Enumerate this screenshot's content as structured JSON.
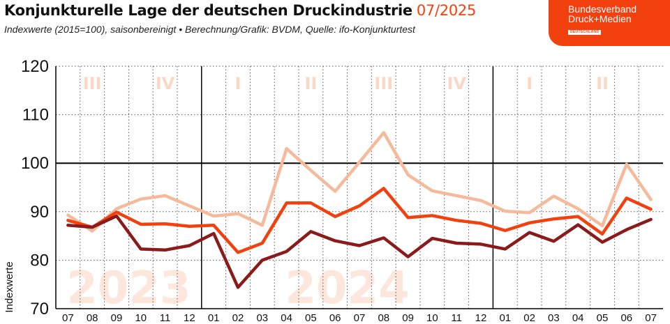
{
  "header": {
    "title": "Konjunkturelle Lage der deutschen Druckindustrie",
    "date": "07/2025",
    "subtitle": "Indexwerte (2015=100), saisonbereinigt • Berechnung/Grafik: BVDM, Quelle: ifo-Konjunkturtest"
  },
  "logo": {
    "line1": "Bundesverband",
    "line2": "Druck+Medien",
    "badge": "DEUTSCHLAND"
  },
  "chart_data": {
    "type": "line",
    "title": "Konjunkturelle Lage der deutschen Druckindustrie",
    "ylabel": "Indexwerte",
    "xlabel": "",
    "ylim": [
      70,
      120
    ],
    "yticks": [
      70,
      80,
      90,
      100,
      110,
      120
    ],
    "grid": true,
    "categories": [
      "07",
      "08",
      "09",
      "10",
      "11",
      "12",
      "01",
      "02",
      "03",
      "04",
      "05",
      "06",
      "07",
      "08",
      "09",
      "10",
      "11",
      "12",
      "01",
      "02",
      "03",
      "04",
      "05",
      "06",
      "07"
    ],
    "year_start_indices": [
      6,
      18
    ],
    "quarters": [
      {
        "label": "III",
        "start": 0,
        "end": 2
      },
      {
        "label": "IV",
        "start": 3,
        "end": 5
      },
      {
        "label": "I",
        "start": 6,
        "end": 8
      },
      {
        "label": "II",
        "start": 9,
        "end": 11
      },
      {
        "label": "III",
        "start": 12,
        "end": 14
      },
      {
        "label": "IV",
        "start": 15,
        "end": 17
      },
      {
        "label": "I",
        "start": 18,
        "end": 20
      },
      {
        "label": "II",
        "start": 21,
        "end": 23
      }
    ],
    "year_labels": [
      {
        "label": "2023",
        "start": 0,
        "end": 5
      },
      {
        "label": "2024",
        "start": 9,
        "end": 14
      }
    ],
    "series": [
      {
        "name": "light",
        "color": "#f5b99c",
        "values": [
          89.3,
          86.0,
          90.6,
          92.6,
          93.3,
          91.2,
          89.1,
          89.6,
          87.2,
          103.0,
          98.5,
          94.2,
          100.2,
          106.3,
          97.6,
          94.3,
          93.3,
          92.3,
          90.1,
          89.8,
          93.2,
          90.6,
          87.1,
          99.8,
          92.5
        ]
      },
      {
        "name": "medium",
        "color": "#f2400f",
        "values": [
          88.2,
          86.8,
          89.9,
          87.4,
          87.5,
          87.0,
          87.2,
          81.6,
          83.5,
          91.8,
          91.8,
          89.0,
          91.2,
          94.8,
          88.8,
          89.2,
          88.2,
          87.6,
          86.1,
          87.7,
          88.5,
          89.0,
          85.4,
          92.8,
          90.5
        ]
      },
      {
        "name": "dark",
        "color": "#8b1a1a",
        "values": [
          87.2,
          86.8,
          89.1,
          82.3,
          82.1,
          83.0,
          85.5,
          74.4,
          80.0,
          81.8,
          85.9,
          84.0,
          83.0,
          84.6,
          80.7,
          84.5,
          83.5,
          83.3,
          82.3,
          85.7,
          83.9,
          87.3,
          83.7,
          86.3,
          88.4
        ]
      }
    ]
  }
}
